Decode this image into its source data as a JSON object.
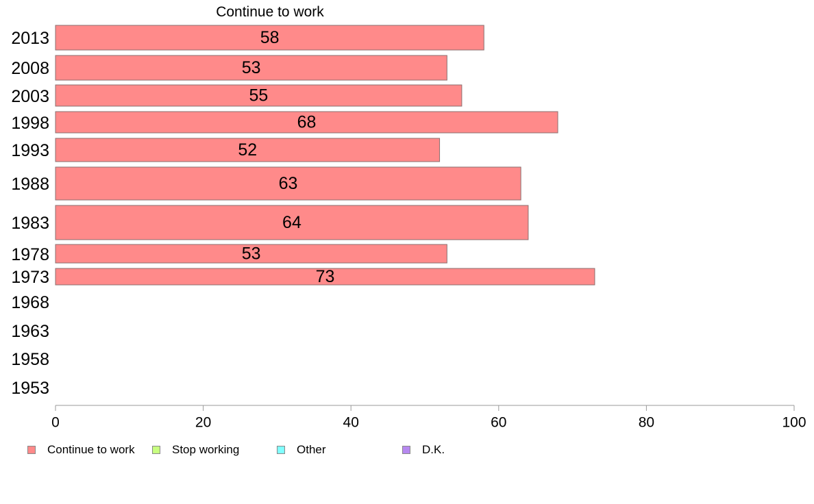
{
  "chart_data": {
    "type": "bar",
    "orientation": "horizontal",
    "title": "Continue to work",
    "categories": [
      "2013",
      "2008",
      "2003",
      "1998",
      "1993",
      "1988",
      "1983",
      "1978",
      "1973",
      "1968",
      "1963",
      "1958",
      "1953"
    ],
    "series": [
      {
        "name": "Continue to work",
        "color": "#ff8a8a",
        "values": [
          58,
          53,
          55,
          68,
          52,
          63,
          64,
          53,
          73,
          null,
          null,
          null,
          null
        ]
      }
    ],
    "xlim": [
      0,
      100
    ],
    "xticks": [
      "0",
      "20",
      "40",
      "60",
      "80",
      "100"
    ],
    "legend": [
      {
        "label": "Continue to work",
        "color": "#ff8a8a"
      },
      {
        "label": "Stop working",
        "color": "#c8ff80"
      },
      {
        "label": "Other",
        "color": "#80ffff"
      },
      {
        "label": "D.K.",
        "color": "#b688f0"
      }
    ],
    "legend_position": "bottom-left",
    "grid": false
  }
}
